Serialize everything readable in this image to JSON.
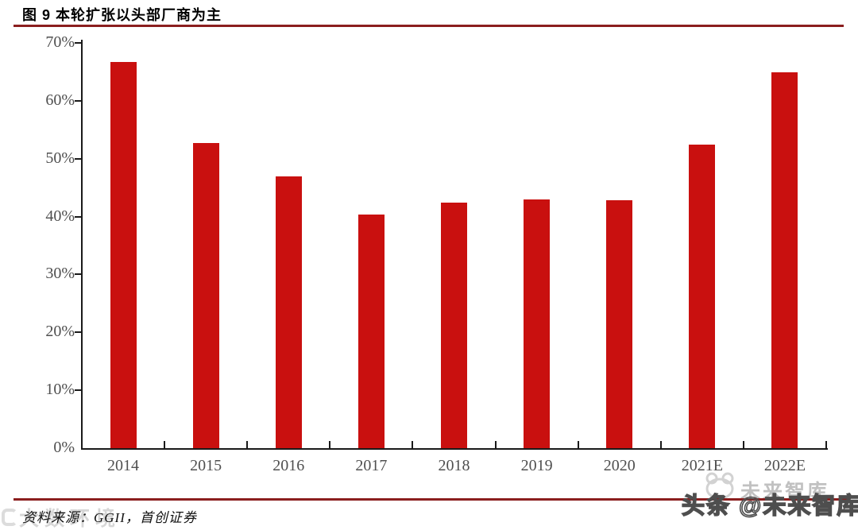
{
  "header": {
    "title": "图 9 本轮扩张以头部厂商为主"
  },
  "chart_data": {
    "type": "bar",
    "title": "图 9 本轮扩张以头部厂商为主",
    "categories": [
      "2014",
      "2015",
      "2016",
      "2017",
      "2018",
      "2019",
      "2020",
      "2021E",
      "2022E"
    ],
    "values": [
      66.7,
      52.7,
      46.9,
      40.3,
      42.4,
      42.9,
      42.8,
      52.4,
      64.9
    ],
    "xlabel": "",
    "ylabel": "",
    "ylim": [
      0,
      70
    ],
    "ytick_step": 10,
    "ytick_labels": [
      "70%",
      "60%",
      "50%",
      "40%",
      "30%",
      "20%",
      "10%",
      "0%"
    ],
    "grid": false,
    "legend": false
  },
  "footer": {
    "source": "资料来源：GGII，首创证券"
  },
  "watermarks": {
    "corner_text": "大数环境",
    "brand_text": "未来智库",
    "outline_text": "头条 @未来智库"
  },
  "colors": {
    "bar": "#C9100F",
    "rule": "#8B1E1E",
    "axis": "#1a1a1a",
    "tick_label": "#4f4f4f"
  }
}
